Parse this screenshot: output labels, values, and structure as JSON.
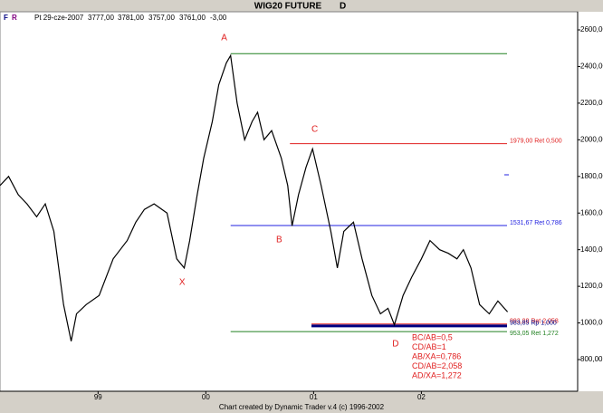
{
  "chart_data": {
    "type": "line",
    "title": "WIG20 FUTURE",
    "period": "D",
    "info": {
      "date": "Pt 29-cze-2007",
      "open": "3777,00",
      "high": "3781,00",
      "low": "3757,00",
      "close": "3761,00",
      "change": "-3,00"
    },
    "footer": "Chart created by Dynamic Trader v.4  (c) 1996-2002",
    "x": [
      1998.09,
      1998.17,
      1998.26,
      1998.34,
      1998.43,
      1998.51,
      1998.59,
      1998.68,
      1998.75,
      1998.8,
      1998.89,
      1999.01,
      1999.14,
      1999.27,
      1999.35,
      1999.43,
      1999.52,
      1999.64,
      1999.73,
      1999.8,
      1999.85,
      1999.92,
      1999.98,
      2000.06,
      2000.12,
      2000.19,
      2000.23,
      2000.29,
      2000.36,
      2000.43,
      2000.48,
      2000.54,
      2000.61,
      2000.7,
      2000.76,
      2000.8,
      2000.86,
      2000.93,
      2000.99,
      2001.07,
      2001.16,
      2001.22,
      2001.28,
      2001.37,
      2001.45,
      2001.54,
      2001.62,
      2001.69,
      2001.75,
      2001.83,
      2001.91,
      2002.0,
      2002.08,
      2002.17,
      2002.25,
      2002.33,
      2002.39,
      2002.46,
      2002.54,
      2002.63,
      2002.71,
      2002.8
    ],
    "series": [
      {
        "name": "WIG20",
        "color": "#000000",
        "values": [
          1750,
          1800,
          1700,
          1650,
          1580,
          1650,
          1500,
          1100,
          900,
          1050,
          1100,
          1150,
          1350,
          1450,
          1550,
          1620,
          1650,
          1600,
          1350,
          1300,
          1450,
          1700,
          1900,
          2100,
          2300,
          2420,
          2460,
          2200,
          2000,
          2100,
          2150,
          2000,
          2050,
          1900,
          1750,
          1530,
          1700,
          1850,
          1950,
          1750,
          1500,
          1300,
          1500,
          1550,
          1350,
          1150,
          1050,
          1080,
          990,
          1150,
          1250,
          1350,
          1450,
          1400,
          1380,
          1350,
          1400,
          1300,
          1100,
          1050,
          1120,
          1060
        ]
      }
    ],
    "xlim": [
      1998.09,
      2003.45
    ],
    "ylim": [
      627,
      2689
    ],
    "xticks": [
      {
        "value": 1999,
        "label": "99"
      },
      {
        "value": 2000,
        "label": "00"
      },
      {
        "value": 2001,
        "label": "01"
      },
      {
        "value": 2002,
        "label": "02"
      }
    ],
    "yticks": [
      {
        "value": 800,
        "label": "800,00"
      },
      {
        "value": 1000,
        "label": "1000,00"
      },
      {
        "value": 1200,
        "label": "1200,00"
      },
      {
        "value": 1400,
        "label": "1400,00"
      },
      {
        "value": 1600,
        "label": "1600,00"
      },
      {
        "value": 1800,
        "label": "1800,00"
      },
      {
        "value": 2000,
        "label": "2000,00"
      },
      {
        "value": 2200,
        "label": "2200,00"
      },
      {
        "value": 2400,
        "label": "2400,00"
      },
      {
        "value": 2600,
        "label": "2600,00"
      }
    ],
    "levels": [
      {
        "value": 2470,
        "color": "#208020",
        "x_start": 2000.23
      },
      {
        "value": 1979,
        "label": "1979,00 Ret 0,500",
        "color": "#e02020",
        "x_start": 2000.78
      },
      {
        "value": 1531.67,
        "label": "1531,67 Ret 0,786",
        "color": "#2020e0",
        "x_start": 2000.23
      },
      {
        "value": 993.88,
        "label": "993,88 Ret 2,058",
        "color": "#e02020",
        "x_start": 2000.98
      },
      {
        "value": 983.85,
        "label": "983,85 Rp 1,000",
        "color": "#000080",
        "x_start": 2000.98
      },
      {
        "value": 953.05,
        "label": "953,05 Ret 1,272",
        "color": "#208020",
        "x_start": 2000.23
      }
    ],
    "annotations": [
      {
        "text": "A",
        "x": 2000.17,
        "y": 2555
      },
      {
        "text": "B",
        "x": 2000.68,
        "y": 1453
      },
      {
        "text": "C",
        "x": 2001.01,
        "y": 2056
      },
      {
        "text": "D",
        "x": 2001.76,
        "y": 884
      },
      {
        "text": "X",
        "x": 1999.78,
        "y": 1220
      }
    ],
    "ratios": [
      "BC/AB=0,5",
      "CD/AB=1",
      "AB/XA=0,786",
      "CD/AB=2,058",
      "AD/XA=1,272"
    ]
  }
}
